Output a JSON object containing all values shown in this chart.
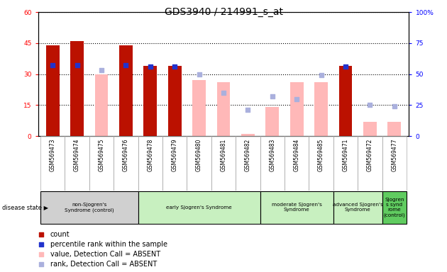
{
  "title": "GDS3940 / 214991_s_at",
  "samples": [
    "GSM569473",
    "GSM569474",
    "GSM569475",
    "GSM569476",
    "GSM569478",
    "GSM569479",
    "GSM569480",
    "GSM569481",
    "GSM569482",
    "GSM569483",
    "GSM569484",
    "GSM569485",
    "GSM569471",
    "GSM569472",
    "GSM569477"
  ],
  "detection": [
    "P",
    "P",
    "A",
    "P",
    "P",
    "P",
    "A",
    "A",
    "A",
    "A",
    "A",
    "A",
    "P",
    "A",
    "A"
  ],
  "count_values": [
    44,
    46,
    0,
    44,
    34,
    34,
    0,
    0,
    0,
    0,
    0,
    0,
    34,
    0,
    0
  ],
  "rank_pct": [
    57,
    57,
    0,
    57,
    56,
    56,
    0,
    0,
    0,
    0,
    0,
    0,
    56,
    0,
    0
  ],
  "absent_value": [
    0,
    0,
    30,
    0,
    0,
    0,
    27,
    26,
    1,
    14,
    26,
    26,
    0,
    7,
    7
  ],
  "absent_rank_pct": [
    0,
    0,
    53,
    0,
    0,
    0,
    50,
    35,
    21,
    32,
    30,
    49,
    0,
    25,
    24
  ],
  "ylim_left": [
    0,
    60
  ],
  "ylim_right": [
    0,
    100
  ],
  "yticks_left": [
    0,
    15,
    30,
    45,
    60
  ],
  "yticks_right": [
    0,
    25,
    50,
    75,
    100
  ],
  "groups": [
    {
      "label": "non-Sjogren's\nSyndrome (control)",
      "start": 0,
      "end": 3,
      "color": "#d0d0d0"
    },
    {
      "label": "early Sjogren's Syndrome",
      "start": 4,
      "end": 8,
      "color": "#c8f0c0"
    },
    {
      "label": "moderate Sjogren's\nSyndrome",
      "start": 9,
      "end": 11,
      "color": "#c8f0c0"
    },
    {
      "label": "advanced Sjogren's\nSyndrome",
      "start": 12,
      "end": 13,
      "color": "#c8f0c0"
    },
    {
      "label": "Sjogren\ns synd\nrome\n(control)",
      "start": 14,
      "end": 14,
      "color": "#60cc60"
    }
  ],
  "group_colors": [
    "#d0d0d0",
    "#c8f0c0",
    "#c8f0c0",
    "#c8f0c0",
    "#60cc60"
  ],
  "bar_color_present": "#bb1100",
  "bar_color_absent": "#ffb8b8",
  "rank_color_present": "#2233cc",
  "rank_color_absent": "#aab0dd",
  "bar_width": 0.55,
  "rank_square_size": 18,
  "bg_color": "#d8d8d8",
  "title_fontsize": 10,
  "tick_fontsize": 6.5,
  "label_fontsize": 6.5,
  "legend_fontsize": 7
}
